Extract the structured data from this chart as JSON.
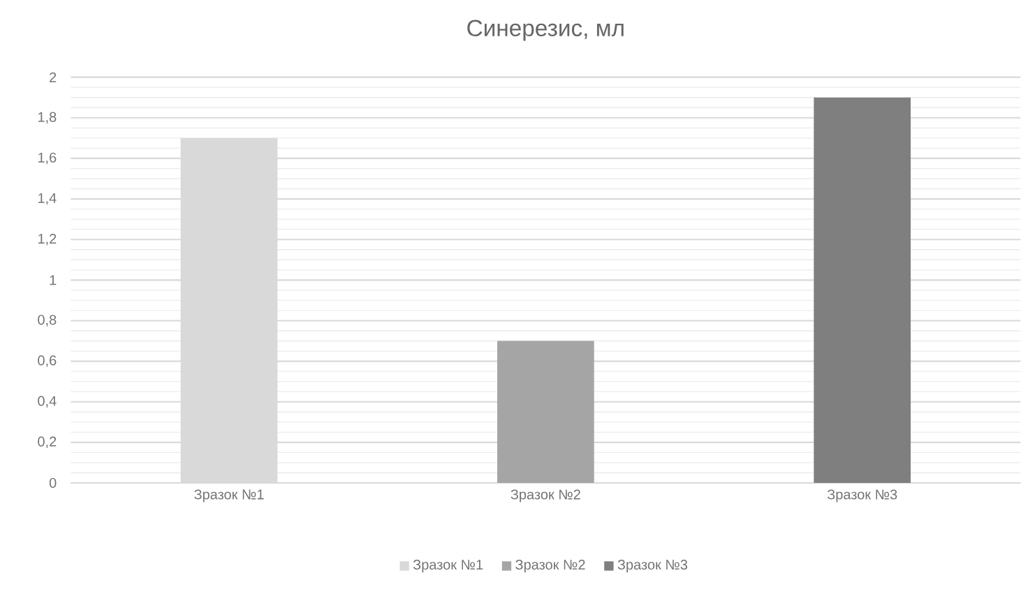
{
  "chart_data": {
    "type": "bar",
    "title": "Синерезис, мл",
    "categories": [
      "Зразок №1",
      "Зразок №2",
      "Зразок №3"
    ],
    "series": [
      {
        "name": "Зразок №1",
        "color": "#d9d9d9",
        "values": [
          1.7,
          null,
          null
        ]
      },
      {
        "name": "Зразок №2",
        "color": "#a5a5a5",
        "values": [
          null,
          0.7,
          null
        ]
      },
      {
        "name": "Зразок №3",
        "color": "#7f7f7f",
        "values": [
          null,
          null,
          1.9
        ]
      }
    ],
    "ylim": [
      0,
      2
    ],
    "yticks": [
      0,
      {
        "value": 0.2,
        "label": "0,2"
      },
      {
        "value": 0.4,
        "label": "0,4"
      },
      {
        "value": 0.6,
        "label": "0,6"
      },
      {
        "value": 0.8,
        "label": "0,8"
      },
      1,
      {
        "value": 1.2,
        "label": "1,2"
      },
      {
        "value": 1.4,
        "label": "1,4"
      },
      {
        "value": 1.6,
        "label": "1,6"
      },
      {
        "value": 1.8,
        "label": "1,8"
      },
      2
    ],
    "grid": true,
    "legend": "bottom"
  }
}
